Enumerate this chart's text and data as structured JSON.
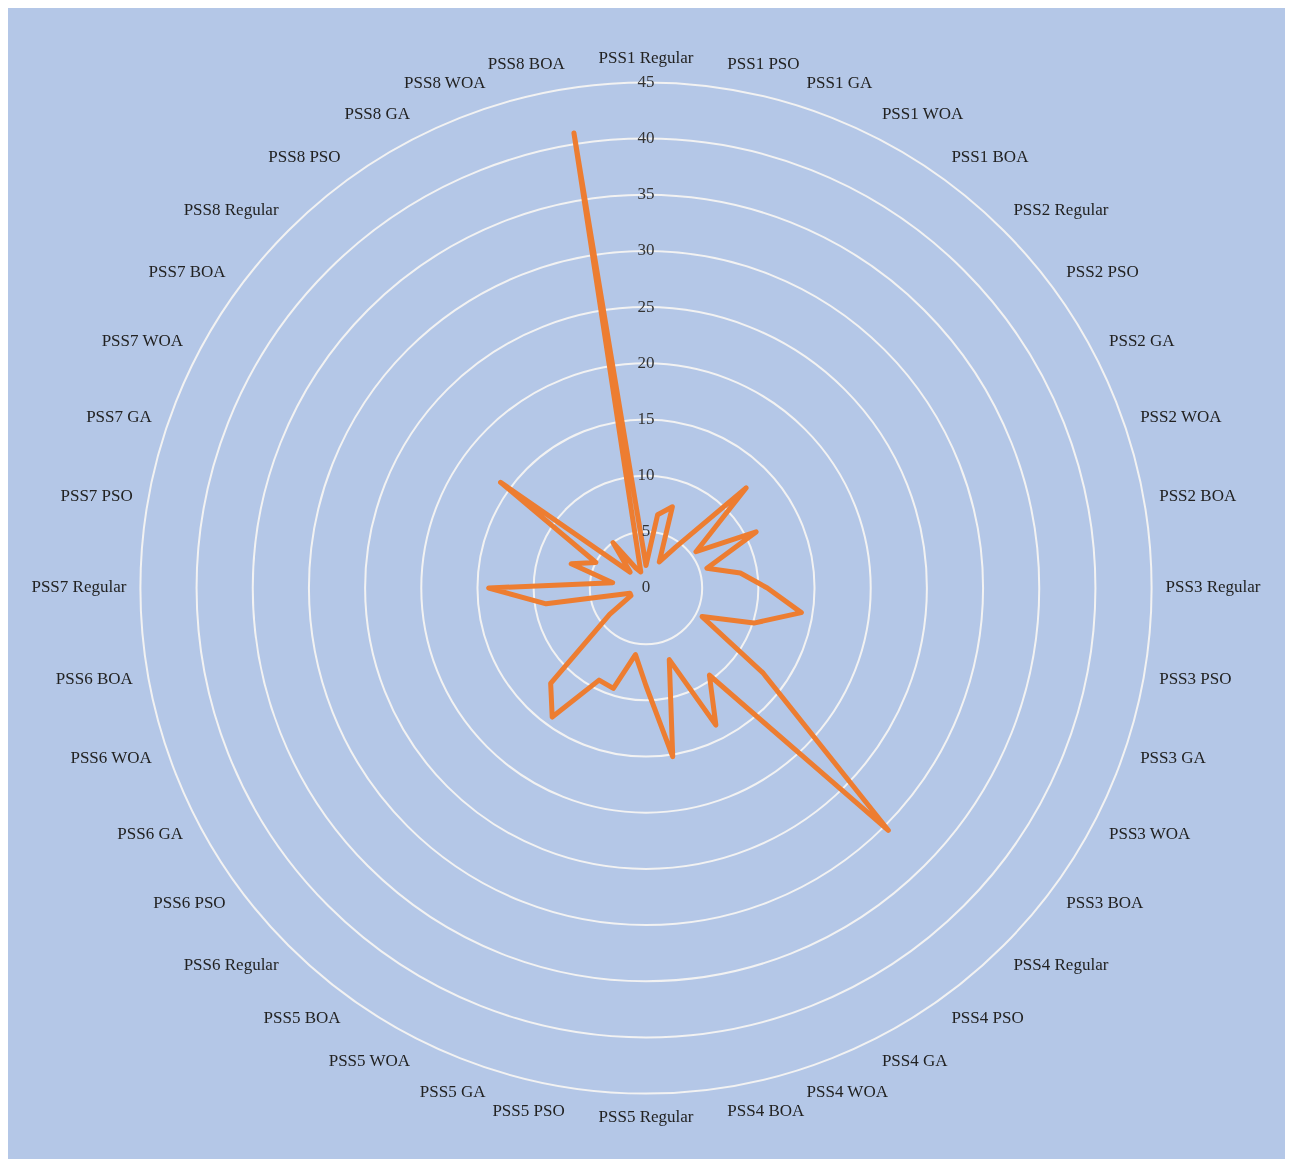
{
  "chart_data": {
    "type": "radar",
    "categories": [
      "PSS1 Regular",
      "PSS1 PSO",
      "PSS1 GA",
      "PSS1 WOA",
      "PSS1 BOA",
      "PSS2 Regular",
      "PSS2 PSO",
      "PSS2 GA",
      "PSS2 WOA",
      "PSS2 BOA",
      "PSS3 Regular",
      "PSS3 PSO",
      "PSS3 GA",
      "PSS3 WOA",
      "PSS3 BOA",
      "PSS4 Regular",
      "PSS4 PSO",
      "PSS4 GA",
      "PSS4 WOA",
      "PSS4 BOA",
      "PSS5 Regular",
      "PSS5 PSO",
      "PSS5 GA",
      "PSS5 WOA",
      "PSS5 BOA",
      "PSS6 Regular",
      "PSS6 PSO",
      "PSS6 GA",
      "PSS6 WOA",
      "PSS6 BOA",
      "PSS7 Regular",
      "PSS7 PSO",
      "PSS7 GA",
      "PSS7 WOA",
      "PSS7 BOA",
      "PSS8 Regular",
      "PSS8 PSO",
      "PSS8 GA",
      "PSS8 WOA",
      "PSS8 BOA"
    ],
    "series": [
      {
        "color": "#ed7d31",
        "values": [
          2,
          6.6,
          7.6,
          2.6,
          4.5,
          12.6,
          5.5,
          11,
          5.7,
          8.5,
          10.8,
          14,
          10.1,
          5.6,
          12.9,
          30.5,
          9.6,
          13.7,
          6.7,
          15.2,
          8.7,
          6,
          9.4,
          9.2,
          14.2,
          12,
          4,
          1.5,
          1.5,
          9,
          14,
          3,
          7,
          5,
          16,
          2,
          5,
          2,
          1.5,
          41
        ]
      }
    ],
    "ylim": [
      0,
      45
    ],
    "yticks": [
      0,
      5,
      10,
      15,
      20,
      25,
      30,
      35,
      40,
      45
    ],
    "grid": true,
    "legend": false,
    "marker": "none",
    "line_style": "solid"
  }
}
